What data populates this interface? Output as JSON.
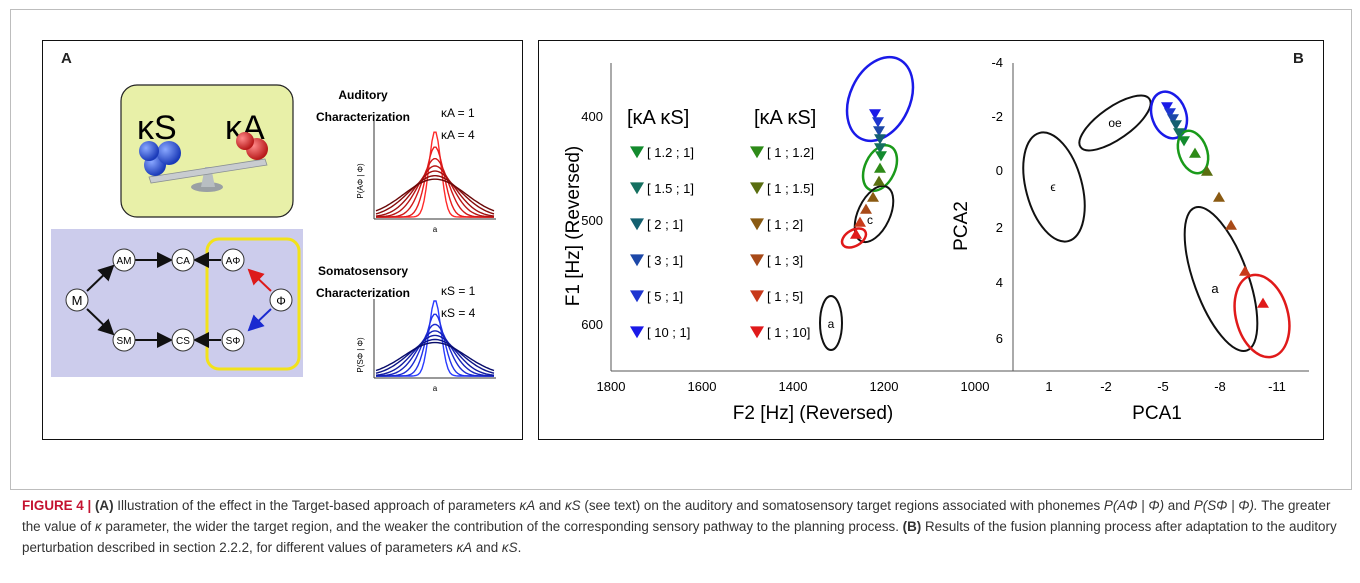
{
  "figure": {
    "panel_a": {
      "letter": "A",
      "balance_labels": {
        "left": "κS",
        "right": "κA"
      },
      "auditory": {
        "title_line1": "Auditory",
        "title_line2": "Characterization",
        "ylabel": "P(AΦ | Φ)",
        "xlabel": "a",
        "kappa_labels": [
          "κA = 1",
          "κA = 4"
        ]
      },
      "somatosensory": {
        "title_line1": "Somatosensory",
        "title_line2": "Characterization",
        "ylabel": "P(SΦ | Φ)",
        "xlabel": "a",
        "kappa_labels": [
          "κS = 1",
          "κS = 4"
        ]
      },
      "graph_nodes": {
        "m": "M",
        "am": "AM",
        "ca": "CA",
        "aphi": "AΦ",
        "sm": "SM",
        "cs": "CS",
        "sphi": "SΦ",
        "phi": "Φ"
      },
      "colors": {
        "auditory": "#cc2020",
        "somatosensory": "#1c2ec0",
        "highlight": "#f2e21a",
        "balance_bg": "#e8f0a8",
        "graph_bg": "#ccccec"
      }
    },
    "panel_b": {
      "letter": "B",
      "left_plot": {
        "xlabel": "F2 [Hz] (Reversed)",
        "ylabel": "F1 [Hz] (Reversed)",
        "x_ticks": [
          "1800",
          "1600",
          "1400",
          "1200",
          "1000"
        ],
        "y_ticks": [
          "400",
          "500",
          "600"
        ],
        "legend_headers": {
          "left": "[κA κS]",
          "right": "[κA κS]"
        },
        "legend_left": [
          "[ 1.2 ; 1]",
          "[ 1.5 ; 1]",
          "[ 2 ; 1]",
          "[ 3 ; 1]",
          "[ 5 ; 1]",
          "[ 10 ; 1]"
        ],
        "legend_right": [
          "[ 1 ; 1.2]",
          "[ 1 ; 1.5]",
          "[ 1 ; 2]",
          "[ 1 ; 3]",
          "[ 1 ; 5]",
          "[ 1 ; 10]"
        ],
        "ellipse_labels": [
          "c",
          "a"
        ]
      },
      "right_plot": {
        "xlabel": "PCA1",
        "ylabel": "PCA2",
        "x_ticks": [
          "1",
          "-2",
          "-5",
          "-8",
          "-11"
        ],
        "y_ticks": [
          "-4",
          "-2",
          "0",
          "2",
          "4",
          "6"
        ],
        "ellipse_labels": [
          "oe",
          "ϵ",
          "a"
        ]
      },
      "series_colors": {
        "kA_down": [
          "#138a2e",
          "#157060",
          "#146070",
          "#1d48a8",
          "#1e36d0",
          "#1a1ae8"
        ],
        "kS_up": [
          "#2e8a18",
          "#5a6e10",
          "#8a5a12",
          "#a84a18",
          "#c83a1a",
          "#e01a1a"
        ]
      }
    },
    "caption": {
      "label": "FIGURE 4 |",
      "part_a_label": "(A)",
      "part_a_text_1": "Illustration of the effect in the Target-based approach of parameters",
      "kappa_a": "κA",
      "and_1": "and",
      "kappa_s": "κS",
      "part_a_text_2": "(see text) on the auditory and somatosensory target regions associated with phonemes",
      "prob_a": "P(AΦ | Φ)",
      "and_2": "and",
      "prob_s": "P(SΦ | Φ).",
      "part_a_text_3": "The greater the value of",
      "kappa": "κ",
      "part_a_text_4": "parameter, the wider the target region, and the weaker the contribution of the corresponding sensory pathway to the planning process.",
      "part_b_label": "(B)",
      "part_b_text": "Results of the fusion planning process after adaptation to the auditory perturbation described in section 2.2.2, for different values of parameters",
      "kappa_a_2": "κA",
      "and_3": "and",
      "kappa_s_2": "κS",
      "end": "."
    }
  }
}
